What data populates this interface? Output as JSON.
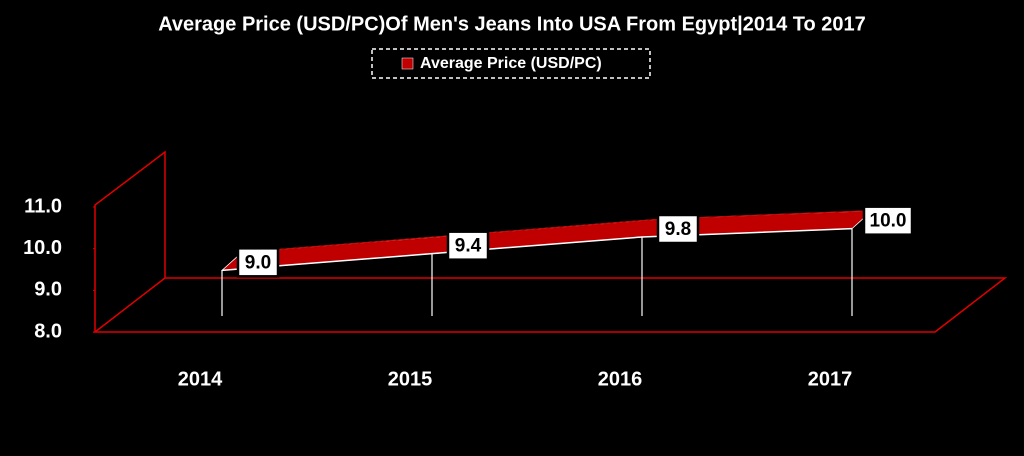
{
  "chart_data": {
    "type": "line3d",
    "title": "Average Price (USD/PC)Of Men's Jeans Into USA From Egypt|2014 To 2017",
    "categories": [
      "2014",
      "2015",
      "2016",
      "2017"
    ],
    "series": [
      {
        "name": "Average Price (USD/PC)",
        "color": "#c00000",
        "values": [
          9.0,
          9.4,
          9.8,
          10.0
        ],
        "value_labels": [
          "9.0",
          "9.4",
          "9.8",
          "10.0"
        ]
      }
    ],
    "ylim": [
      8,
      11
    ],
    "yticks": [
      {
        "value": 8,
        "label": "8.0"
      },
      {
        "value": 9,
        "label": "9.0"
      },
      {
        "value": 10,
        "label": "10.0"
      },
      {
        "value": 11,
        "label": "11.0"
      }
    ],
    "grid": false
  }
}
